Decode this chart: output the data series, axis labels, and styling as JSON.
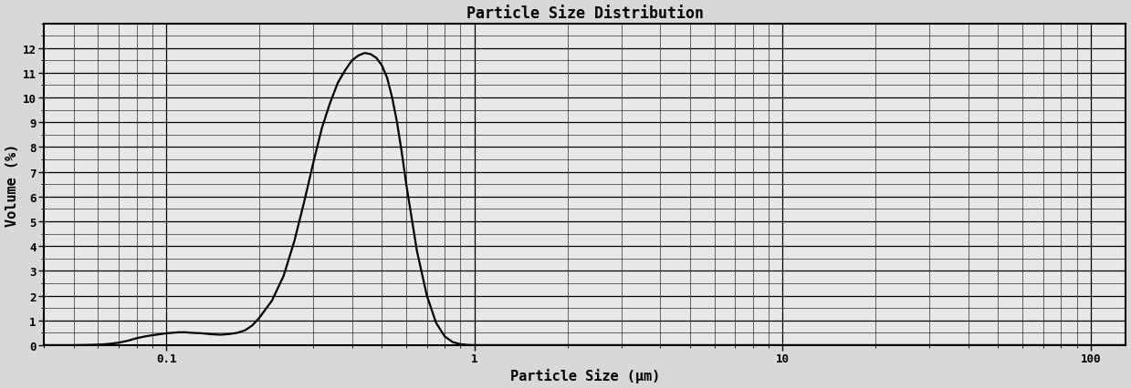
{
  "title": "Particle Size Distribution",
  "xlabel": "Particle Size (μm)",
  "ylabel": "Volume (%)",
  "xlim": [
    0.04,
    130
  ],
  "ylim": [
    0,
    13
  ],
  "yticks": [
    0,
    1,
    2,
    3,
    4,
    5,
    6,
    7,
    8,
    9,
    10,
    11,
    12
  ],
  "xtick_labels": [
    "0.1",
    "1",
    "10",
    "100"
  ],
  "xtick_positions": [
    0.1,
    1,
    10,
    100
  ],
  "curve_color": "#000000",
  "background_color": "#d8d8d8",
  "plot_bg_color": "#e8e8e8",
  "line_width": 1.6,
  "curve_x": [
    0.04,
    0.045,
    0.05,
    0.055,
    0.06,
    0.065,
    0.07,
    0.075,
    0.08,
    0.085,
    0.09,
    0.095,
    0.1,
    0.105,
    0.11,
    0.115,
    0.12,
    0.125,
    0.13,
    0.135,
    0.14,
    0.15,
    0.16,
    0.17,
    0.18,
    0.19,
    0.2,
    0.22,
    0.24,
    0.26,
    0.28,
    0.3,
    0.32,
    0.34,
    0.36,
    0.38,
    0.4,
    0.42,
    0.44,
    0.46,
    0.48,
    0.5,
    0.52,
    0.54,
    0.56,
    0.58,
    0.6,
    0.65,
    0.7,
    0.75,
    0.8,
    0.85,
    0.9,
    0.95,
    1.0,
    1.1,
    1.2,
    1.3,
    1.5,
    2.0,
    5.0,
    20.0,
    130.0
  ],
  "curve_y": [
    0.0,
    0.0,
    0.0,
    0.01,
    0.02,
    0.05,
    0.1,
    0.18,
    0.28,
    0.35,
    0.4,
    0.44,
    0.48,
    0.5,
    0.52,
    0.52,
    0.5,
    0.49,
    0.48,
    0.46,
    0.44,
    0.42,
    0.45,
    0.5,
    0.6,
    0.8,
    1.1,
    1.8,
    2.8,
    4.2,
    5.8,
    7.4,
    8.8,
    9.8,
    10.6,
    11.1,
    11.5,
    11.7,
    11.8,
    11.75,
    11.6,
    11.3,
    10.8,
    10.0,
    9.0,
    7.8,
    6.5,
    3.8,
    2.0,
    0.9,
    0.35,
    0.12,
    0.04,
    0.01,
    0.0,
    0.0,
    0.0,
    0.0,
    0.0,
    0.0,
    0.0,
    0.0,
    0.0
  ]
}
